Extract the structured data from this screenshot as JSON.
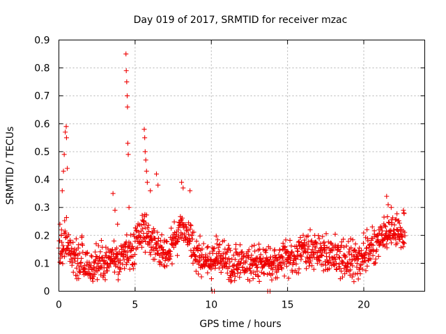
{
  "chart_data": {
    "type": "scatter",
    "title": "Day 019 of 2017, SRMTID for receiver mzac",
    "xlabel": "GPS time / hours",
    "ylabel": "SRMTID / TECUs",
    "xlim": [
      0,
      24
    ],
    "ylim": [
      0,
      0.9
    ],
    "xticks": [
      0,
      5,
      10,
      15,
      20
    ],
    "xtick_labels": [
      "0",
      "5",
      "10",
      "15",
      "20"
    ],
    "yticks": [
      0,
      0.1,
      0.2,
      0.3,
      0.4,
      0.5,
      0.6,
      0.7,
      0.8,
      0.9
    ],
    "ytick_labels": [
      "0",
      "0.1",
      "0.2",
      "0.3",
      "0.4",
      "0.5",
      "0.6",
      "0.7",
      "0.8",
      "0.9"
    ],
    "grid": true,
    "marker": "plus",
    "color": "#ee0000",
    "series": [
      {
        "name": "SRMTID",
        "x_range": [
          0,
          22.7
        ],
        "baseline_profile": [
          [
            0.0,
            0.15
          ],
          [
            0.5,
            0.18
          ],
          [
            1.0,
            0.1
          ],
          [
            1.5,
            0.13
          ],
          [
            2.0,
            0.08
          ],
          [
            2.5,
            0.11
          ],
          [
            3.0,
            0.1
          ],
          [
            3.5,
            0.13
          ],
          [
            4.0,
            0.11
          ],
          [
            4.5,
            0.14
          ],
          [
            5.0,
            0.17
          ],
          [
            5.5,
            0.22
          ],
          [
            6.0,
            0.19
          ],
          [
            6.5,
            0.15
          ],
          [
            7.0,
            0.14
          ],
          [
            7.5,
            0.17
          ],
          [
            8.0,
            0.22
          ],
          [
            8.5,
            0.19
          ],
          [
            9.0,
            0.13
          ],
          [
            9.5,
            0.12
          ],
          [
            10.0,
            0.11
          ],
          [
            10.5,
            0.13
          ],
          [
            11.0,
            0.11
          ],
          [
            12.0,
            0.1
          ],
          [
            13.0,
            0.11
          ],
          [
            14.0,
            0.1
          ],
          [
            15.0,
            0.12
          ],
          [
            16.0,
            0.14
          ],
          [
            17.0,
            0.15
          ],
          [
            18.0,
            0.12
          ],
          [
            19.0,
            0.11
          ],
          [
            20.0,
            0.13
          ],
          [
            21.0,
            0.17
          ],
          [
            21.5,
            0.21
          ],
          [
            22.0,
            0.21
          ],
          [
            22.7,
            0.2
          ]
        ],
        "peaks": [
          {
            "x": 0.07,
            "y": 0.24
          },
          {
            "x": 0.17,
            "y": 0.22
          },
          {
            "x": 0.22,
            "y": 0.36
          },
          {
            "x": 0.3,
            "y": 0.43
          },
          {
            "x": 0.35,
            "y": 0.49
          },
          {
            "x": 0.42,
            "y": 0.57
          },
          {
            "x": 0.48,
            "y": 0.59
          },
          {
            "x": 0.5,
            "y": 0.55
          },
          {
            "x": 0.55,
            "y": 0.44
          },
          {
            "x": 3.55,
            "y": 0.35
          },
          {
            "x": 3.68,
            "y": 0.29
          },
          {
            "x": 3.85,
            "y": 0.24
          },
          {
            "x": 4.4,
            "y": 0.85
          },
          {
            "x": 4.42,
            "y": 0.79
          },
          {
            "x": 4.45,
            "y": 0.75
          },
          {
            "x": 4.48,
            "y": 0.7
          },
          {
            "x": 4.5,
            "y": 0.66
          },
          {
            "x": 4.52,
            "y": 0.53
          },
          {
            "x": 4.55,
            "y": 0.49
          },
          {
            "x": 4.6,
            "y": 0.3
          },
          {
            "x": 5.6,
            "y": 0.58
          },
          {
            "x": 5.63,
            "y": 0.55
          },
          {
            "x": 5.66,
            "y": 0.5
          },
          {
            "x": 5.7,
            "y": 0.47
          },
          {
            "x": 5.75,
            "y": 0.43
          },
          {
            "x": 5.8,
            "y": 0.39
          },
          {
            "x": 6.0,
            "y": 0.36
          },
          {
            "x": 6.4,
            "y": 0.42
          },
          {
            "x": 6.5,
            "y": 0.38
          },
          {
            "x": 8.05,
            "y": 0.39
          },
          {
            "x": 8.15,
            "y": 0.37
          },
          {
            "x": 8.6,
            "y": 0.36
          },
          {
            "x": 21.5,
            "y": 0.34
          },
          {
            "x": 21.6,
            "y": 0.31
          },
          {
            "x": 21.8,
            "y": 0.3
          },
          {
            "x": 22.6,
            "y": 0.29
          }
        ],
        "zero_values": [
          {
            "x": 10.05,
            "y": 0
          },
          {
            "x": 10.2,
            "y": 0
          },
          {
            "x": 13.7,
            "y": 0
          },
          {
            "x": 13.85,
            "y": 0
          }
        ]
      }
    ]
  }
}
